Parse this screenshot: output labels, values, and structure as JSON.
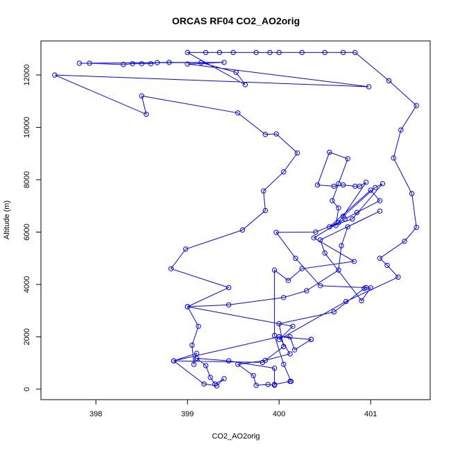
{
  "chart_data": {
    "type": "line",
    "title": "ORCAS RF04 CO2_AO2orig",
    "xlabel": "CO2_AO2orig",
    "ylabel": "Altitude (m)",
    "xlim": [
      397.4,
      401.65
    ],
    "ylim": [
      -400,
      13300
    ],
    "x_ticks": [
      398,
      399,
      400,
      401
    ],
    "y_ticks": [
      0,
      2000,
      4000,
      6000,
      8000,
      10000,
      12000
    ],
    "grid": false,
    "legend": "none",
    "series": [
      {
        "color": "#0000ff",
        "marker": "circle",
        "points": [
          [
            399.95,
            150
          ],
          [
            399.88,
            180
          ],
          [
            399.75,
            150
          ],
          [
            399.72,
            520
          ],
          [
            399.55,
            950
          ],
          [
            399.85,
            1100
          ],
          [
            400.12,
            1350
          ],
          [
            400.0,
            2000
          ],
          [
            400.12,
            2000
          ],
          [
            400.17,
            1500
          ],
          [
            400.35,
            1900
          ],
          [
            400.35,
            1900
          ],
          [
            400.0,
            2000
          ],
          [
            398.85,
            1080
          ],
          [
            399.1,
            1370
          ],
          [
            399.07,
            950
          ],
          [
            399.05,
            1680
          ],
          [
            399.12,
            2400
          ],
          [
            399.0,
            3150
          ],
          [
            399.45,
            3880
          ],
          [
            398.82,
            4600
          ],
          [
            398.98,
            5350
          ],
          [
            399.6,
            6080
          ],
          [
            399.85,
            6820
          ],
          [
            399.83,
            7570
          ],
          [
            400.05,
            8300
          ],
          [
            400.2,
            9020
          ],
          [
            399.97,
            9750
          ],
          [
            399.85,
            9730
          ],
          [
            399.55,
            10550
          ],
          [
            398.5,
            11200
          ],
          [
            398.55,
            10500
          ],
          [
            397.55,
            12000
          ],
          [
            400.98,
            11550
          ],
          [
            399.0,
            12420
          ],
          [
            399.4,
            12480
          ],
          [
            397.82,
            12450
          ],
          [
            397.93,
            12450
          ],
          [
            398.3,
            12400
          ],
          [
            398.4,
            12430
          ],
          [
            398.5,
            12430
          ],
          [
            398.6,
            12430
          ],
          [
            398.67,
            12470
          ],
          [
            398.8,
            12480
          ],
          [
            399.15,
            12470
          ],
          [
            399.53,
            12100
          ],
          [
            399.63,
            11630
          ],
          [
            399.0,
            12860
          ],
          [
            399.2,
            12860
          ],
          [
            399.35,
            12860
          ],
          [
            399.5,
            12860
          ],
          [
            399.75,
            12860
          ],
          [
            399.9,
            12860
          ],
          [
            400.0,
            12860
          ],
          [
            400.25,
            12860
          ],
          [
            400.5,
            12860
          ],
          [
            400.7,
            12860
          ],
          [
            400.83,
            12860
          ],
          [
            401.2,
            11780
          ],
          [
            401.5,
            10830
          ],
          [
            401.33,
            9900
          ],
          [
            401.25,
            8830
          ],
          [
            401.45,
            7470
          ],
          [
            401.5,
            6180
          ],
          [
            401.37,
            5650
          ],
          [
            401.1,
            5000
          ],
          [
            401.18,
            4730
          ],
          [
            401.3,
            4280
          ],
          [
            400.73,
            3350
          ],
          [
            400.0,
            1900
          ],
          [
            400.15,
            2400
          ],
          [
            399.0,
            3150
          ],
          [
            399.45,
            3220
          ],
          [
            400.05,
            3500
          ],
          [
            400.3,
            3760
          ],
          [
            400.65,
            4550
          ],
          [
            400.68,
            5480
          ],
          [
            400.75,
            6200
          ],
          [
            401.1,
            6800
          ],
          [
            400.45,
            5700
          ],
          [
            400.5,
            5200
          ],
          [
            400.9,
            3380
          ],
          [
            401.0,
            3870
          ],
          [
            400.45,
            3950
          ],
          [
            400.18,
            5000
          ],
          [
            399.97,
            5990
          ],
          [
            400.4,
            6000
          ],
          [
            400.65,
            6360
          ],
          [
            400.95,
            7900
          ],
          [
            400.88,
            7750
          ],
          [
            400.83,
            7750
          ],
          [
            400.7,
            7800
          ],
          [
            400.6,
            7750
          ],
          [
            400.42,
            7800
          ],
          [
            400.55,
            9050
          ],
          [
            400.75,
            8800
          ],
          [
            400.65,
            7850
          ],
          [
            400.58,
            7200
          ],
          [
            400.65,
            6920
          ],
          [
            400.62,
            6250
          ],
          [
            400.7,
            6600
          ],
          [
            401.05,
            7700
          ],
          [
            401.13,
            7850
          ],
          [
            400.8,
            6500
          ],
          [
            400.55,
            6200
          ],
          [
            401.0,
            7600
          ],
          [
            401.1,
            7200
          ],
          [
            400.85,
            6750
          ],
          [
            400.72,
            6500
          ],
          [
            400.38,
            5780
          ],
          [
            400.82,
            4880
          ],
          [
            400.25,
            4600
          ],
          [
            400.1,
            4150
          ],
          [
            399.95,
            4550
          ],
          [
            399.95,
            2050
          ],
          [
            400.05,
            950
          ],
          [
            400.13,
            300
          ],
          [
            400.12,
            300
          ],
          [
            399.95,
            180
          ],
          [
            399.95,
            800
          ],
          [
            399.45,
            1080
          ],
          [
            399.1,
            1180
          ],
          [
            399.2,
            900
          ],
          [
            399.25,
            450
          ],
          [
            399.3,
            200
          ],
          [
            399.4,
            400
          ],
          [
            399.32,
            130
          ],
          [
            399.18,
            200
          ],
          [
            398.85,
            1080
          ],
          [
            399.82,
            1020
          ],
          [
            400.05,
            1630
          ],
          [
            400.0,
            2500
          ],
          [
            400.6,
            2950
          ],
          [
            400.93,
            3850
          ],
          [
            400.95,
            3880
          ]
        ]
      }
    ]
  }
}
